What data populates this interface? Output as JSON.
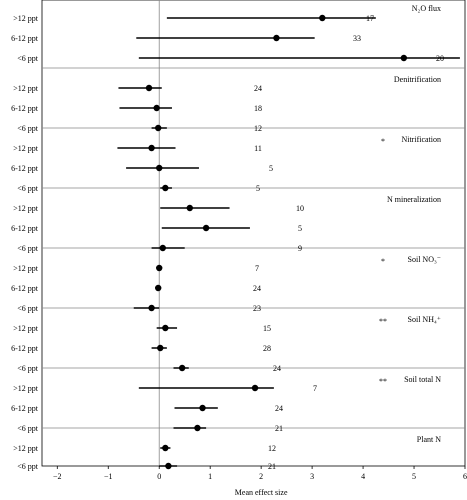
{
  "chart_data": {
    "type": "forest",
    "xlabel": "Mean effect size",
    "xlim": [
      -2.3,
      6.0
    ],
    "xticks": [
      -2,
      -1,
      0,
      1,
      2,
      3,
      4,
      5,
      6
    ],
    "panels": [
      {
        "title": "N₂O flux",
        "significance": "",
        "rows": [
          {
            "label": ">12 ppt",
            "mean": 3.2,
            "lo": 0.15,
            "hi": 4.25,
            "n": "17"
          },
          {
            "label": "6-12 ppt",
            "mean": 2.3,
            "lo": -0.45,
            "hi": 3.05,
            "n": "33"
          },
          {
            "label": "<6 ppt",
            "mean": 4.8,
            "lo": -0.4,
            "hi": 5.9,
            "n": "20"
          }
        ]
      },
      {
        "title": "Denitrification",
        "significance": "",
        "rows": [
          {
            "label": ">12 ppt",
            "mean": -0.2,
            "lo": -0.8,
            "hi": 0.05,
            "n": "24"
          },
          {
            "label": "6-12 ppt",
            "mean": -0.05,
            "lo": -0.78,
            "hi": 0.25,
            "n": "18"
          },
          {
            "label": "<6 ppt",
            "mean": -0.02,
            "lo": -0.15,
            "hi": 0.15,
            "n": "12"
          }
        ]
      },
      {
        "title": "Nitrification",
        "significance": "*",
        "rows": [
          {
            "label": ">12 ppt",
            "mean": -0.15,
            "lo": -0.82,
            "hi": 0.32,
            "n": "11"
          },
          {
            "label": "6-12 ppt",
            "mean": 0.0,
            "lo": -0.65,
            "hi": 0.78,
            "n": "5"
          },
          {
            "label": "<6 ppt",
            "mean": 0.12,
            "lo": 0.02,
            "hi": 0.25,
            "n": "5"
          }
        ]
      },
      {
        "title": "N mineralization",
        "significance": "",
        "rows": [
          {
            "label": ">12 ppt",
            "mean": 0.6,
            "lo": 0.02,
            "hi": 1.38,
            "n": "10"
          },
          {
            "label": "6-12 ppt",
            "mean": 0.92,
            "lo": 0.05,
            "hi": 1.78,
            "n": "5"
          },
          {
            "label": "<6 ppt",
            "mean": 0.07,
            "lo": -0.15,
            "hi": 0.5,
            "n": "9"
          }
        ]
      },
      {
        "title": "Soil NO₃⁻",
        "significance": "*",
        "rows": [
          {
            "label": ">12 ppt",
            "mean": 0.0,
            "lo": -0.05,
            "hi": 0.05,
            "n": "7"
          },
          {
            "label": "6-12 ppt",
            "mean": -0.02,
            "lo": -0.06,
            "hi": 0.03,
            "n": "24"
          },
          {
            "label": "<6 ppt",
            "mean": -0.15,
            "lo": -0.5,
            "hi": 0.0,
            "n": "23"
          }
        ]
      },
      {
        "title": "Soil NH₄⁺",
        "significance": "**",
        "rows": [
          {
            "label": ">12 ppt",
            "mean": 0.12,
            "lo": -0.05,
            "hi": 0.35,
            "n": "15"
          },
          {
            "label": "6-12 ppt",
            "mean": 0.02,
            "lo": -0.15,
            "hi": 0.15,
            "n": "28"
          },
          {
            "label": "<6 ppt",
            "mean": 0.45,
            "lo": 0.28,
            "hi": 0.58,
            "n": "24"
          }
        ]
      },
      {
        "title": "Soil total N",
        "significance": "**",
        "rows": [
          {
            "label": ">12 ppt",
            "mean": 1.88,
            "lo": -0.4,
            "hi": 2.25,
            "n": "7"
          },
          {
            "label": "6-12 ppt",
            "mean": 0.85,
            "lo": 0.3,
            "hi": 1.15,
            "n": "24"
          },
          {
            "label": "<6 ppt",
            "mean": 0.75,
            "lo": 0.28,
            "hi": 0.92,
            "n": "21"
          }
        ]
      },
      {
        "title": "Plant N",
        "significance": "",
        "rows": [
          {
            "label": ">12 ppt",
            "mean": 0.12,
            "lo": 0.02,
            "hi": 0.22,
            "n": "12"
          },
          {
            "label": "<6 ppt",
            "mean": 0.18,
            "lo": 0.0,
            "hi": 0.35,
            "n": "21"
          }
        ]
      }
    ]
  }
}
